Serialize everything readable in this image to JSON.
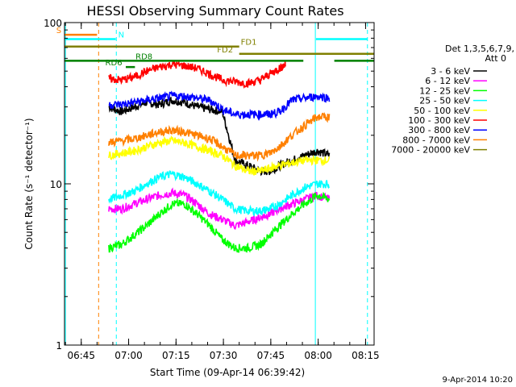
{
  "chart_data": {
    "type": "line",
    "title": "HESSI Observing Summary Count Rates",
    "xlabel": "Start Time (09-Apr-14 06:39:42)",
    "ylabel": "Count Rate (s⁻¹ detector⁻¹)",
    "x_unit": "minutes after 06:39:42",
    "xlim": [
      0,
      98
    ],
    "ylim": [
      1,
      100
    ],
    "y_scale": "log",
    "x_ticks": [
      {
        "label": "06:45",
        "x": 5.3
      },
      {
        "label": "07:00",
        "x": 20.3
      },
      {
        "label": "07:15",
        "x": 35.3
      },
      {
        "label": "07:30",
        "x": 50.3
      },
      {
        "label": "07:45",
        "x": 65.3
      },
      {
        "label": "08:00",
        "x": 80.3
      },
      {
        "label": "08:15",
        "x": 95.3
      }
    ],
    "y_ticks": [
      {
        "label": "100",
        "value": 100
      },
      {
        "label": "10",
        "value": 10
      },
      {
        "label": "1",
        "value": 1
      }
    ],
    "legend_header": [
      "Det 1,3,5,6,7,9,",
      "Att 0"
    ],
    "series": [
      {
        "name": "3 - 6 keV",
        "color": "#000000",
        "x": [
          14,
          18,
          22,
          26,
          30,
          34,
          38,
          42,
          46,
          50,
          54,
          58,
          62,
          65,
          68,
          72,
          76,
          80,
          84
        ],
        "y": [
          30,
          28,
          30,
          32,
          31,
          33,
          32,
          30,
          29,
          28,
          14,
          13,
          12,
          12,
          13,
          14,
          15,
          16,
          15
        ]
      },
      {
        "name": "6 - 12 keV",
        "color": "#ff00ff",
        "x": [
          14,
          18,
          22,
          26,
          30,
          34,
          38,
          42,
          46,
          50,
          54,
          58,
          62,
          65,
          68,
          72,
          76,
          80,
          84
        ],
        "y": [
          7,
          7,
          7.5,
          8,
          8.5,
          8.8,
          8.5,
          7.5,
          6.5,
          6,
          5.5,
          5.8,
          6.2,
          6.5,
          7,
          7.5,
          8,
          8.5,
          8
        ]
      },
      {
        "name": "12 - 25 keV",
        "color": "#00ff00",
        "x": [
          14,
          18,
          22,
          26,
          30,
          34,
          38,
          42,
          46,
          50,
          54,
          58,
          62,
          65,
          68,
          72,
          76,
          80,
          84
        ],
        "y": [
          4,
          4.2,
          4.8,
          5.5,
          6.5,
          7.5,
          7.5,
          6.5,
          5.5,
          4.5,
          4,
          4,
          4.2,
          4.8,
          5.5,
          6.5,
          7.5,
          8.5,
          8
        ]
      },
      {
        "name": "25 - 50 keV",
        "color": "#00ffff",
        "x": [
          14,
          18,
          22,
          26,
          30,
          34,
          38,
          42,
          46,
          50,
          54,
          58,
          62,
          65,
          68,
          72,
          76,
          80,
          84
        ],
        "y": [
          8,
          8.5,
          9,
          10,
          11,
          11.5,
          11,
          10,
          9,
          8,
          7,
          6.8,
          6.8,
          7,
          7.5,
          8.5,
          9.5,
          10,
          10
        ]
      },
      {
        "name": "50 - 100 keV",
        "color": "#ffff00",
        "x": [
          14,
          18,
          22,
          26,
          30,
          34,
          38,
          42,
          46,
          50,
          54,
          58,
          62,
          65,
          68,
          72,
          76,
          80,
          84
        ],
        "y": [
          15,
          15.5,
          16,
          17,
          18,
          18.5,
          18,
          17,
          16,
          15,
          13,
          12,
          12,
          12.5,
          13,
          13.5,
          14,
          14,
          14
        ]
      },
      {
        "name": "100 - 300 keV",
        "color": "#ff0000",
        "x": [
          14,
          18,
          22,
          26,
          30,
          34,
          38,
          42,
          46,
          50,
          54,
          58,
          62,
          65,
          68,
          70
        ],
        "y": [
          45,
          44,
          46,
          50,
          53,
          55,
          54,
          52,
          48,
          44,
          43,
          42,
          44,
          48,
          52,
          55
        ]
      },
      {
        "name": "300 - 800 keV",
        "color": "#0000ff",
        "x": [
          14,
          18,
          22,
          26,
          30,
          34,
          38,
          42,
          46,
          50,
          54,
          58,
          62,
          65,
          68,
          72,
          76,
          80,
          84
        ],
        "y": [
          31,
          31,
          32,
          33,
          34,
          35,
          35,
          34,
          33,
          29,
          27,
          27,
          27,
          27,
          28,
          33,
          34,
          35,
          34
        ]
      },
      {
        "name": "800 - 7000 keV",
        "color": "#ff8000",
        "x": [
          14,
          18,
          22,
          26,
          30,
          34,
          38,
          42,
          46,
          50,
          54,
          58,
          62,
          65,
          68,
          72,
          76,
          80,
          84
        ],
        "y": [
          18,
          18.5,
          19,
          20,
          21,
          21.5,
          21,
          20,
          19,
          17,
          15,
          15,
          15,
          15.5,
          17,
          20,
          23,
          26,
          26
        ]
      },
      {
        "name": "7000 - 20000 keV",
        "color": "#808000",
        "x": [],
        "y": []
      }
    ],
    "flags": [
      {
        "label": "S",
        "color": "#ff8000",
        "x_start": 0.0,
        "x_end": 10.3,
        "y": 84,
        "label_x": -2.6
      },
      {
        "label": "N",
        "color": "#00ffff",
        "x_start": 0.0,
        "x_end": 16.2,
        "y": 79,
        "label_x": 17.0
      },
      {
        "label": "N",
        "color": "#00ffff",
        "x_start": 79.6,
        "x_end": 95.9,
        "y": 79,
        "label_x": null
      },
      {
        "label": "FD1",
        "color": "#808000",
        "x_start": 0.0,
        "x_end": 55.3,
        "y": 71,
        "label_x": 55.8
      },
      {
        "label": "FD2",
        "color": "#808000",
        "x_start": 55.3,
        "x_end": 98.0,
        "y": 64,
        "label_x": 48.3
      },
      {
        "label": "RD8",
        "color": "#008000",
        "x_start": 0.0,
        "x_end": 75.6,
        "y": 58,
        "label_x": 22.5
      },
      {
        "label": "RD8",
        "color": "#008000",
        "x_start": 85.4,
        "x_end": 98.0,
        "y": 58,
        "label_x": null
      },
      {
        "label": "RD6",
        "color": "#008000",
        "x_start": 19.4,
        "x_end": 22.3,
        "y": 53,
        "label_x": 12.9
      }
    ],
    "vlines": [
      {
        "x": 0.3,
        "color": "#00ffff",
        "style": "solid"
      },
      {
        "x": 10.8,
        "color": "#ff8000",
        "style": "dashed"
      },
      {
        "x": 16.4,
        "color": "#00ffff",
        "style": "dashed"
      },
      {
        "x": 79.4,
        "color": "#00ffff",
        "style": "solid"
      },
      {
        "x": 95.9,
        "color": "#00ffff",
        "style": "dashed"
      }
    ],
    "grid": false
  },
  "footer": {
    "timestamp": "9-Apr-2014 10:20"
  }
}
